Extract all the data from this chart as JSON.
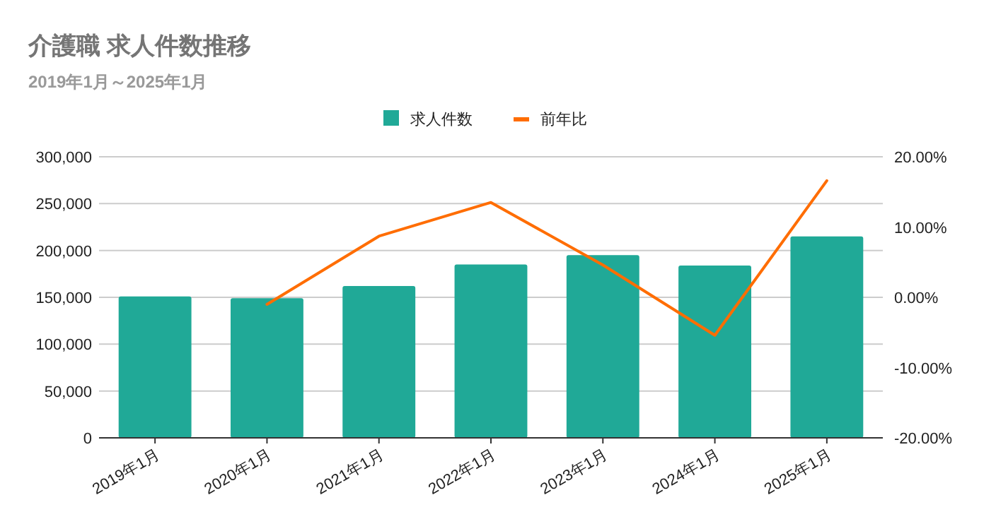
{
  "chart_data": {
    "type": "bar",
    "title": "介護職 求人件数推移",
    "subtitle": "2019年1月～2025年1月",
    "categories": [
      "2019年1月",
      "2020年1月",
      "2021年1月",
      "2022年1月",
      "2023年1月",
      "2024年1月",
      "2025年1月"
    ],
    "series": [
      {
        "name": "求人件数",
        "color": "#20a997",
        "values": [
          151000,
          149000,
          162000,
          185000,
          195000,
          184000,
          215000
        ]
      },
      {
        "name": "前年比",
        "type": "line",
        "axis": "y2",
        "color": "#ff6d01",
        "values": [
          null,
          -1.0,
          8.7,
          13.5,
          4.6,
          -5.4,
          16.6
        ]
      }
    ],
    "ylim": [
      0,
      300000
    ],
    "yticks": [
      {
        "value": 0,
        "label": "0"
      },
      {
        "value": 50000,
        "label": "50,000"
      },
      {
        "value": 100000,
        "label": "100,000"
      },
      {
        "value": 150000,
        "label": "150,000"
      },
      {
        "value": 200000,
        "label": "200,000"
      },
      {
        "value": 250000,
        "label": "250,000"
      },
      {
        "value": 300000,
        "label": "300,000"
      }
    ],
    "y2lim": [
      -20,
      20
    ],
    "y2ticks": [
      {
        "value": -20,
        "label": "-20.00%"
      },
      {
        "value": -10,
        "label": "-10.00%"
      },
      {
        "value": 0,
        "label": "0.00%"
      },
      {
        "value": 10,
        "label": "10.00%"
      },
      {
        "value": 20,
        "label": "20.00%"
      }
    ],
    "grid": "y",
    "legend": "top"
  }
}
